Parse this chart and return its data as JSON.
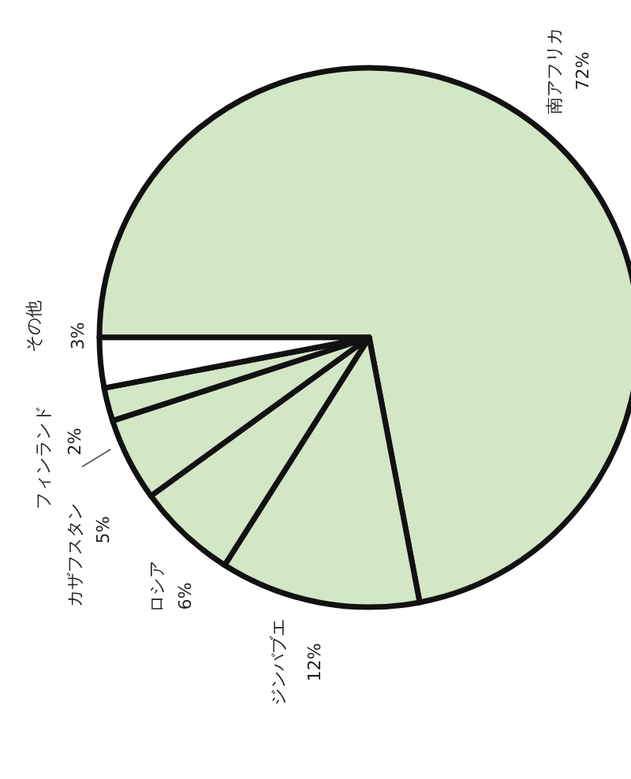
{
  "chart_data": {
    "type": "pie",
    "categories": [
      "南アフリカ",
      "ジンバブエ",
      "ロシア",
      "カザフスタン",
      "フィンランド",
      "その他"
    ],
    "values": [
      72,
      12,
      6,
      5,
      2,
      3
    ],
    "value_labels": [
      "72%",
      "12%",
      "6%",
      "5%",
      "2%",
      "3%"
    ],
    "colors": [
      "#d3e6c6",
      "#d3e6c6",
      "#d3e6c6",
      "#d3e6c6",
      "#d3e6c6",
      "#ffffff"
    ]
  }
}
